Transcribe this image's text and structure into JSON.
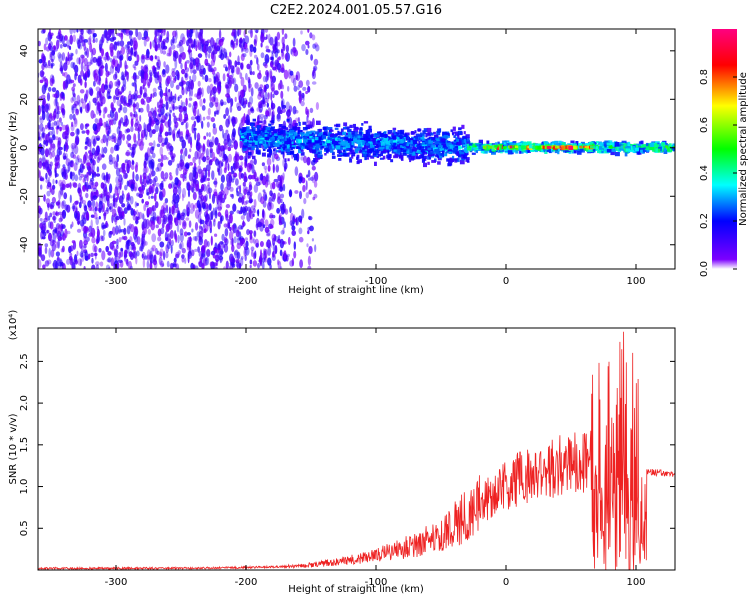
{
  "title": "C2E2.2024.001.05.57.G16",
  "chart_data": [
    {
      "type": "heatmap",
      "xlabel": "Height of straight line (km)",
      "ylabel": "Frequency (Hz)",
      "xlim": [
        -360,
        130
      ],
      "ylim": [
        -50,
        49
      ],
      "xticks": [
        -300,
        -200,
        -100,
        0,
        100
      ],
      "yticks": [
        -40,
        -20,
        0,
        20,
        40
      ],
      "grid": false,
      "colorbar": {
        "label": "Normalized spectral amplitude",
        "range": [
          0,
          1
        ],
        "ticks": [
          "0.0",
          "0.2",
          "0.4",
          "0.6",
          "0.8"
        ],
        "colormap": [
          "#ffffff",
          "#7c00ff",
          "#0000ff",
          "#00ffff",
          "#00ff00",
          "#ffff00",
          "#ff0000",
          "#ff0080"
        ]
      },
      "structure": [
        {
          "x_range": [
            -360,
            -145
          ],
          "freq_range": [
            -50,
            49
          ],
          "amplitude": 0.12,
          "pattern": "scattered noise"
        },
        {
          "x_range": [
            -205,
            -30
          ],
          "freq_center": 4,
          "freq_halfwidth": 9,
          "amplitude": 0.3
        },
        {
          "x_range": [
            -30,
            130
          ],
          "freq_center": 0,
          "freq_halfwidth": 3,
          "amplitude": 0.45
        },
        {
          "x_range": [
            -20,
            65
          ],
          "freq_center": 0,
          "freq_halfwidth": 0.6,
          "amplitude": 0.85
        }
      ]
    },
    {
      "type": "line",
      "xlabel": "Height of straight line (km)",
      "ylabel": "SNR (10 * v/v)",
      "y_multiplier": "(x10⁴)",
      "xlim": [
        -360,
        130
      ],
      "ylim": [
        0,
        2.9
      ],
      "xticks": [
        -300,
        -200,
        -100,
        0,
        100
      ],
      "yticks": [
        "0.5",
        "1.0",
        "1.5",
        "2.0",
        "2.5"
      ],
      "grid": false,
      "series": [
        {
          "color": "#ee2222",
          "x": [
            -360,
            -300,
            -250,
            -200,
            -170,
            -150,
            -130,
            -110,
            -100,
            -90,
            -80,
            -70,
            -60,
            -50,
            -40,
            -30,
            -20,
            -10,
            0,
            10,
            20,
            30,
            40,
            50,
            60,
            70,
            75,
            80,
            85,
            90,
            95,
            100,
            105,
            110,
            120,
            130
          ],
          "y": [
            0.02,
            0.02,
            0.02,
            0.03,
            0.04,
            0.06,
            0.1,
            0.14,
            0.18,
            0.22,
            0.26,
            0.3,
            0.36,
            0.45,
            0.55,
            0.65,
            0.78,
            0.9,
            1.0,
            1.1,
            1.15,
            1.2,
            1.25,
            1.3,
            1.32,
            1.3,
            1.05,
            1.4,
            1.2,
            1.5,
            1.1,
            1.4,
            1.2,
            1.18,
            1.16,
            1.15
          ]
        }
      ]
    }
  ]
}
